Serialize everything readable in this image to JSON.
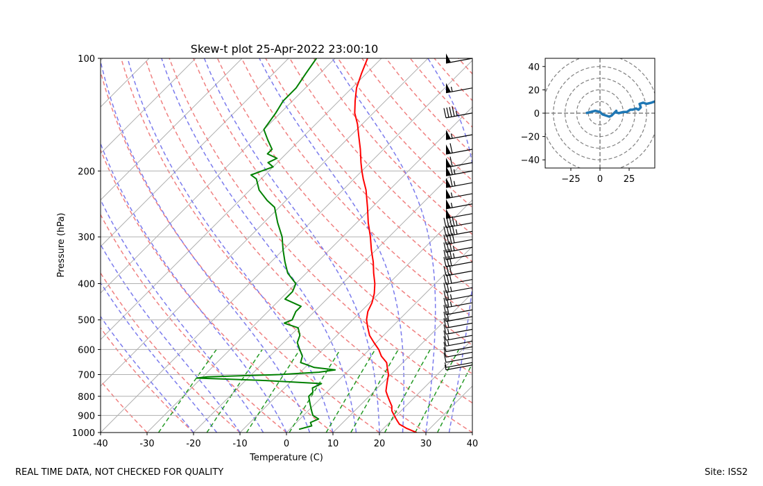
{
  "footer": {
    "disclaimer": "REAL TIME DATA, NOT CHECKED FOR QUALITY",
    "site": "Site: ISS2"
  },
  "chart_data": [
    {
      "type": "line",
      "name": "skew-t",
      "title": "Skew-t plot 25-Apr-2022 23:00:10",
      "xlabel": "Temperature (C)",
      "ylabel": "Pressure (hPa)",
      "xlim": [
        -40,
        40
      ],
      "ylim": [
        1000,
        100
      ],
      "y_scale": "log",
      "x_ticks": [
        -40,
        -30,
        -20,
        -10,
        0,
        10,
        20,
        30,
        40
      ],
      "y_ticks": [
        1000,
        900,
        800,
        700,
        600,
        500,
        400,
        300,
        200,
        100
      ],
      "grid": true,
      "series": [
        {
          "name": "Temperature",
          "color": "#ff0000",
          "points": [
            [
              1000,
              28
            ],
            [
              975,
              25
            ],
            [
              950,
              22.5
            ],
            [
              925,
              21
            ],
            [
              900,
              19.5
            ],
            [
              875,
              18
            ],
            [
              850,
              17
            ],
            [
              825,
              15.5
            ],
            [
              800,
              14
            ],
            [
              775,
              12.5
            ],
            [
              750,
              11.5
            ],
            [
              725,
              10.5
            ],
            [
              700,
              9.5
            ],
            [
              675,
              8
            ],
            [
              650,
              6.5
            ],
            [
              625,
              4
            ],
            [
              600,
              2
            ],
            [
              575,
              -0.5
            ],
            [
              550,
              -3
            ],
            [
              525,
              -5
            ],
            [
              500,
              -7
            ],
            [
              475,
              -8.5
            ],
            [
              450,
              -9.5
            ],
            [
              425,
              -11
            ],
            [
              400,
              -13
            ],
            [
              375,
              -15.5
            ],
            [
              350,
              -18
            ],
            [
              325,
              -21
            ],
            [
              300,
              -24
            ],
            [
              275,
              -27.5
            ],
            [
              250,
              -31
            ],
            [
              225,
              -35
            ],
            [
              210,
              -38
            ],
            [
              200,
              -40
            ],
            [
              190,
              -42
            ],
            [
              175,
              -45
            ],
            [
              160,
              -48.5
            ],
            [
              150,
              -51
            ],
            [
              140,
              -54
            ],
            [
              130,
              -56.5
            ],
            [
              120,
              -59
            ],
            [
              110,
              -61
            ],
            [
              100,
              -63
            ]
          ]
        },
        {
          "name": "Dewpoint",
          "color": "#008000",
          "points": [
            [
              980,
              2
            ],
            [
              960,
              4
            ],
            [
              940,
              3
            ],
            [
              920,
              4
            ],
            [
              900,
              2
            ],
            [
              880,
              1
            ],
            [
              860,
              0
            ],
            [
              840,
              -1
            ],
            [
              820,
              -2
            ],
            [
              800,
              -3
            ],
            [
              780,
              -3
            ],
            [
              760,
              -4
            ],
            [
              740,
              -3
            ],
            [
              725,
              -17
            ],
            [
              715,
              -31
            ],
            [
              710,
              -29
            ],
            [
              700,
              -14
            ],
            [
              690,
              -6
            ],
            [
              680,
              -3
            ],
            [
              670,
              -8
            ],
            [
              660,
              -10
            ],
            [
              650,
              -12
            ],
            [
              625,
              -13
            ],
            [
              600,
              -15
            ],
            [
              575,
              -17
            ],
            [
              550,
              -18
            ],
            [
              525,
              -20
            ],
            [
              510,
              -24
            ],
            [
              500,
              -23
            ],
            [
              475,
              -24
            ],
            [
              460,
              -24
            ],
            [
              440,
              -29
            ],
            [
              420,
              -29
            ],
            [
              400,
              -30
            ],
            [
              375,
              -34
            ],
            [
              350,
              -37
            ],
            [
              325,
              -40
            ],
            [
              300,
              -43
            ],
            [
              275,
              -47
            ],
            [
              250,
              -51
            ],
            [
              240,
              -54
            ],
            [
              225,
              -58
            ],
            [
              210,
              -61
            ],
            [
              205,
              -63
            ],
            [
              195,
              -60
            ],
            [
              190,
              -62
            ],
            [
              185,
              -61
            ],
            [
              180,
              -64
            ],
            [
              175,
              -64
            ],
            [
              165,
              -67
            ],
            [
              155,
              -70
            ],
            [
              140,
              -71
            ],
            [
              130,
              -72
            ],
            [
              120,
              -72
            ],
            [
              110,
              -73
            ],
            [
              100,
              -74
            ]
          ]
        }
      ],
      "wind_barbs_knots": [
        [
          100,
          50
        ],
        [
          120,
          55
        ],
        [
          140,
          45
        ],
        [
          160,
          55
        ],
        [
          175,
          60
        ],
        [
          190,
          62
        ],
        [
          200,
          65
        ],
        [
          215,
          65
        ],
        [
          230,
          55
        ],
        [
          245,
          55
        ],
        [
          260,
          50
        ],
        [
          275,
          45
        ],
        [
          290,
          45
        ],
        [
          305,
          40
        ],
        [
          320,
          35
        ],
        [
          335,
          35
        ],
        [
          350,
          30
        ],
        [
          370,
          30
        ],
        [
          390,
          30
        ],
        [
          410,
          25
        ],
        [
          430,
          25
        ],
        [
          450,
          25
        ],
        [
          470,
          20
        ],
        [
          490,
          20
        ],
        [
          510,
          20
        ],
        [
          530,
          15
        ],
        [
          550,
          15
        ],
        [
          570,
          15
        ],
        [
          590,
          10
        ],
        [
          610,
          10
        ],
        [
          630,
          10
        ],
        [
          650,
          5
        ],
        [
          660,
          5
        ]
      ],
      "reference_lines": [
        "isotherms",
        "dry adiabats",
        "moist adiabats",
        "mixing ratio lines"
      ]
    },
    {
      "type": "line",
      "name": "hodograph",
      "xlim": [
        -47,
        47
      ],
      "ylim": [
        -47,
        47
      ],
      "x_ticks": [
        -25,
        0,
        25
      ],
      "y_ticks": [
        -40,
        -20,
        0,
        20,
        40
      ],
      "rings": [
        10,
        20,
        30,
        40,
        50
      ],
      "color": "#1f77b4",
      "points": [
        [
          -12,
          0
        ],
        [
          -8,
          1
        ],
        [
          -4,
          2
        ],
        [
          0,
          1
        ],
        [
          2,
          -1
        ],
        [
          5,
          -2
        ],
        [
          8,
          -3
        ],
        [
          10,
          -2
        ],
        [
          12,
          0
        ],
        [
          14,
          2
        ],
        [
          13,
          1
        ],
        [
          16,
          0
        ],
        [
          20,
          1
        ],
        [
          23,
          1
        ],
        [
          26,
          3
        ],
        [
          28,
          3
        ],
        [
          31,
          4
        ],
        [
          33,
          3
        ],
        [
          35,
          5
        ],
        [
          34,
          8
        ],
        [
          37,
          9
        ],
        [
          40,
          8
        ],
        [
          44,
          9
        ],
        [
          47,
          10
        ]
      ]
    }
  ]
}
